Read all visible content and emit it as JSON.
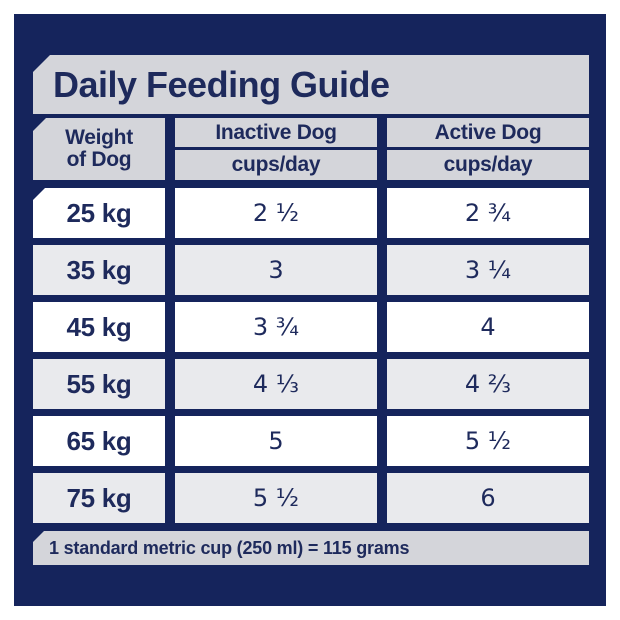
{
  "panel": {
    "title": "Daily Feeding Guide",
    "footer": "1 standard metric cup (250 ml) = 115 grams"
  },
  "table": {
    "weight_header": {
      "line1": "Weight",
      "line2": "of Dog"
    },
    "columns": [
      {
        "label": "Inactive Dog",
        "sub": "cups/day"
      },
      {
        "label": "Active Dog",
        "sub": "cups/day"
      }
    ],
    "rows": [
      {
        "weight": "25 kg",
        "inactive": "2 ½",
        "active": "2 ¾"
      },
      {
        "weight": "35 kg",
        "inactive": "3",
        "active": "3 ¼"
      },
      {
        "weight": "45 kg",
        "inactive": "3 ¾",
        "active": "4"
      },
      {
        "weight": "55 kg",
        "inactive": "4 ⅓",
        "active": "4 ⅔"
      },
      {
        "weight": "65 kg",
        "inactive": "5",
        "active": "5 ½"
      },
      {
        "weight": "75 kg",
        "inactive": "5 ½",
        "active": "6"
      }
    ]
  },
  "chart_data": {
    "type": "table",
    "title": "Daily Feeding Guide",
    "columns": [
      "Weight of Dog",
      "Inactive Dog cups/day",
      "Active Dog cups/day"
    ],
    "rows": [
      [
        "25 kg",
        "2 ½",
        "2 ¾"
      ],
      [
        "35 kg",
        "3",
        "3 ¼"
      ],
      [
        "45 kg",
        "3 ¾",
        "4"
      ],
      [
        "55 kg",
        "4 ⅓",
        "4 ⅔"
      ],
      [
        "65 kg",
        "5",
        "5 ½"
      ],
      [
        "75 kg",
        "5 ½",
        "6"
      ]
    ],
    "note": "1 standard metric cup (250 ml) = 115 grams"
  },
  "colors": {
    "navy": "#15245c",
    "text_navy": "#1e2a5c",
    "header_gray": "#d4d5da",
    "row_alt": "#e9eaed",
    "row_white": "#ffffff",
    "page_bg": "#ffffff"
  }
}
